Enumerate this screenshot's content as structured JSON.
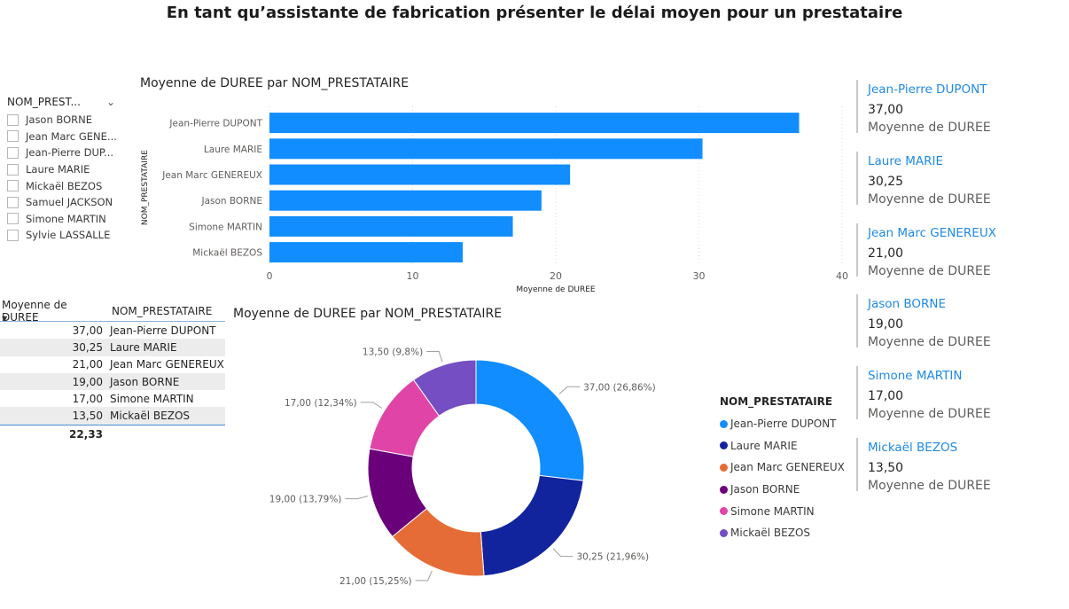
{
  "page": {
    "title": "En tant qu’assistante de fabrication présenter le délai moyen pour un prestataire"
  },
  "slicer": {
    "header": "NOM_PREST...",
    "items": [
      "Jason BORNE",
      "Jean Marc GENE...",
      "Jean-Pierre DUP...",
      "Laure MARIE",
      "Mickaël BEZOS",
      "Samuel JACKSON",
      "Simone MARTIN",
      "Sylvie LASSALLE"
    ]
  },
  "colors": {
    "bar": "#118dff",
    "accent": "#1e8ae6",
    "slices": [
      "#118dff",
      "#12239e",
      "#e66c37",
      "#6b007b",
      "#e044a7",
      "#744ec2"
    ]
  },
  "chart_data": [
    {
      "type": "bar",
      "orientation": "horizontal",
      "title": "Moyenne de DUREE par NOM_PRESTATAIRE",
      "xlabel": "Moyenne de DUREE",
      "ylabel": "NOM_PRESTATAIRE",
      "categories": [
        "Jean-Pierre DUPONT",
        "Laure MARIE",
        "Jean Marc GENEREUX",
        "Jason BORNE",
        "Simone MARTIN",
        "Mickaël BEZOS"
      ],
      "values": [
        37,
        30.25,
        21,
        19,
        17,
        13.5
      ],
      "xlim": [
        0,
        40
      ],
      "xticks": [
        "0",
        "10",
        "20",
        "30",
        "40"
      ],
      "grid": true
    },
    {
      "type": "pie",
      "donut": true,
      "title": "Moyenne de DUREE par NOM_PRESTATAIRE",
      "legend_title": "NOM_PRESTATAIRE",
      "legend_position": "right",
      "categories": [
        "Jean-Pierre DUPONT",
        "Laure MARIE",
        "Jean Marc GENEREUX",
        "Jason BORNE",
        "Simone MARTIN",
        "Mickaël BEZOS"
      ],
      "values": [
        37,
        30.25,
        21,
        19,
        17,
        13.5
      ],
      "data_labels": [
        "37,00 (26,86%)",
        "30,25 (21,96%)",
        "21,00 (15,25%)",
        "19,00 (13,79%)",
        "17,00 (12,34%)",
        "13,50 (9,8%)"
      ]
    }
  ],
  "table": {
    "headers": [
      "Moyenne de DUREE",
      "NOM_PRESTATAIRE"
    ],
    "rows": [
      [
        "37,00",
        "Jean-Pierre DUPONT"
      ],
      [
        "30,25",
        "Laure MARIE"
      ],
      [
        "21,00",
        "Jean Marc GENEREUX"
      ],
      [
        "19,00",
        "Jason BORNE"
      ],
      [
        "17,00",
        "Simone MARTIN"
      ],
      [
        "13,50",
        "Mickaël BEZOS"
      ]
    ],
    "total": "22,33"
  },
  "cards": [
    {
      "name": "Jean-Pierre DUPONT",
      "value": "37,00",
      "label": "Moyenne de DUREE"
    },
    {
      "name": "Laure MARIE",
      "value": "30,25",
      "label": "Moyenne de DUREE"
    },
    {
      "name": "Jean Marc GENEREUX",
      "value": "21,00",
      "label": "Moyenne de DUREE"
    },
    {
      "name": "Jason BORNE",
      "value": "19,00",
      "label": "Moyenne de DUREE"
    },
    {
      "name": "Simone MARTIN",
      "value": "17,00",
      "label": "Moyenne de DUREE"
    },
    {
      "name": "Mickaël BEZOS",
      "value": "13,50",
      "label": "Moyenne de DUREE"
    }
  ]
}
